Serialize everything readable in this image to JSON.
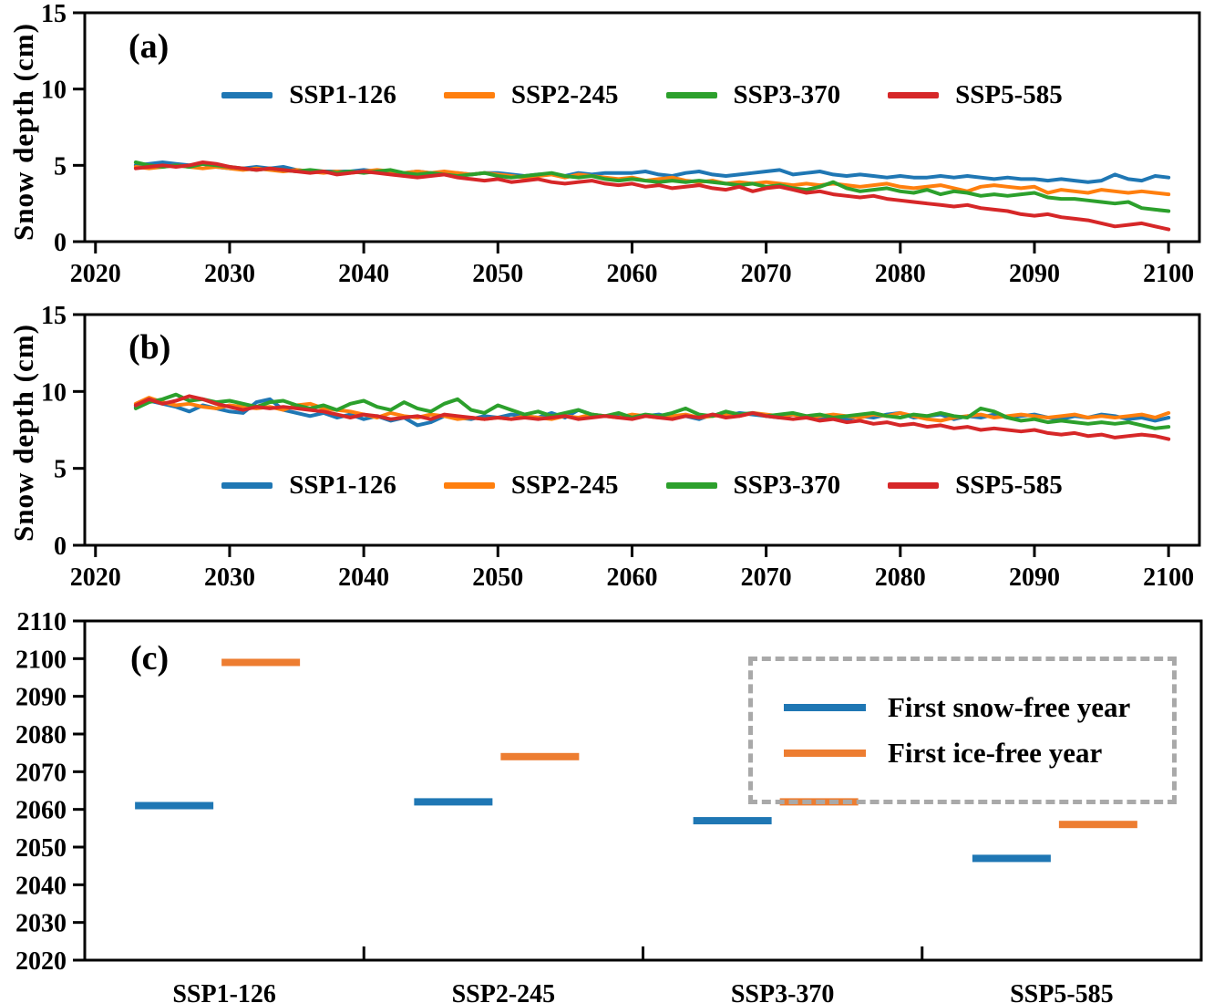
{
  "figure": {
    "panel_a_label": "(a)",
    "panel_b_label": "(b)",
    "panel_c_label": "(c)",
    "y_axis_label_a": "Snow depth (cm)",
    "y_axis_label_b": "Snow depth (cm)"
  },
  "colors": {
    "ssp1": "#1f77b4",
    "ssp2": "#ff7f0e",
    "ssp3": "#2ca02c",
    "ssp5": "#d62728",
    "snow_free": "#1f77b4",
    "ice_free": "#ed7d31",
    "legend_box_border": "#a9a9a9",
    "axis": "#000000"
  },
  "chart_data": [
    {
      "id": "a",
      "type": "line",
      "panel_label": "(a)",
      "ylabel": "Snow depth (cm)",
      "xlim": [
        2019.2,
        2102.3
      ],
      "ylim": [
        0,
        15
      ],
      "x_ticks": [
        2020,
        2030,
        2040,
        2050,
        2060,
        2070,
        2080,
        2090,
        2100
      ],
      "y_ticks": [
        0,
        5,
        10,
        15
      ],
      "x_start_year": 2023,
      "grid": false,
      "legend_position": "upper-center",
      "series": [
        {
          "name": "SSP1-126",
          "color_key": "ssp1",
          "values": [
            5.0,
            5.1,
            5.2,
            5.1,
            5.0,
            5.1,
            4.9,
            4.8,
            4.8,
            4.9,
            4.8,
            4.9,
            4.7,
            4.6,
            4.6,
            4.6,
            4.6,
            4.7,
            4.6,
            4.6,
            4.5,
            4.6,
            4.5,
            4.4,
            4.5,
            4.4,
            4.5,
            4.5,
            4.4,
            4.3,
            4.4,
            4.4,
            4.3,
            4.5,
            4.4,
            4.5,
            4.5,
            4.5,
            4.6,
            4.4,
            4.3,
            4.5,
            4.6,
            4.4,
            4.3,
            4.4,
            4.5,
            4.6,
            4.7,
            4.4,
            4.5,
            4.6,
            4.4,
            4.3,
            4.4,
            4.3,
            4.2,
            4.3,
            4.2,
            4.2,
            4.3,
            4.2,
            4.3,
            4.2,
            4.1,
            4.2,
            4.1,
            4.1,
            4.0,
            4.1,
            4.0,
            3.9,
            4.0,
            4.4,
            4.1,
            4.0,
            4.3,
            4.2
          ]
        },
        {
          "name": "SSP2-245",
          "color_key": "ssp2",
          "values": [
            4.9,
            4.8,
            4.9,
            5.0,
            4.9,
            4.8,
            4.9,
            4.8,
            4.7,
            4.8,
            4.7,
            4.6,
            4.7,
            4.6,
            4.5,
            4.6,
            4.5,
            4.6,
            4.7,
            4.6,
            4.5,
            4.6,
            4.5,
            4.6,
            4.5,
            4.4,
            4.5,
            4.4,
            4.3,
            4.2,
            4.3,
            4.4,
            4.2,
            4.4,
            4.3,
            4.2,
            4.1,
            4.2,
            4.0,
            4.1,
            4.2,
            4.0,
            3.9,
            4.0,
            3.8,
            3.9,
            3.8,
            3.9,
            3.8,
            3.7,
            3.8,
            3.7,
            3.8,
            3.7,
            3.6,
            3.7,
            3.8,
            3.6,
            3.5,
            3.6,
            3.7,
            3.5,
            3.3,
            3.6,
            3.7,
            3.6,
            3.5,
            3.6,
            3.2,
            3.4,
            3.3,
            3.2,
            3.4,
            3.3,
            3.2,
            3.3,
            3.2,
            3.1
          ]
        },
        {
          "name": "SSP3-370",
          "color_key": "ssp3",
          "values": [
            5.2,
            5.0,
            4.9,
            5.0,
            4.9,
            5.1,
            5.0,
            4.9,
            4.8,
            4.7,
            4.8,
            4.7,
            4.6,
            4.7,
            4.6,
            4.5,
            4.6,
            4.5,
            4.6,
            4.7,
            4.5,
            4.4,
            4.5,
            4.4,
            4.3,
            4.4,
            4.5,
            4.3,
            4.2,
            4.3,
            4.4,
            4.5,
            4.3,
            4.2,
            4.3,
            4.1,
            4.0,
            4.1,
            4.0,
            3.9,
            4.0,
            3.9,
            4.0,
            3.9,
            3.8,
            3.7,
            3.8,
            3.6,
            3.7,
            3.5,
            3.4,
            3.6,
            3.9,
            3.5,
            3.3,
            3.4,
            3.5,
            3.3,
            3.2,
            3.4,
            3.1,
            3.3,
            3.2,
            3.0,
            3.1,
            3.0,
            3.1,
            3.2,
            2.9,
            2.8,
            2.8,
            2.7,
            2.6,
            2.5,
            2.6,
            2.2,
            2.1,
            2.0
          ]
        },
        {
          "name": "SSP5-585",
          "color_key": "ssp5",
          "values": [
            4.8,
            4.9,
            5.0,
            4.9,
            5.0,
            5.2,
            5.1,
            4.9,
            4.8,
            4.7,
            4.8,
            4.7,
            4.6,
            4.5,
            4.6,
            4.4,
            4.5,
            4.6,
            4.5,
            4.4,
            4.3,
            4.2,
            4.3,
            4.4,
            4.2,
            4.1,
            4.0,
            4.1,
            3.9,
            4.0,
            4.1,
            3.9,
            3.8,
            3.9,
            4.0,
            3.8,
            3.7,
            3.8,
            3.6,
            3.7,
            3.5,
            3.6,
            3.7,
            3.5,
            3.4,
            3.6,
            3.3,
            3.5,
            3.6,
            3.4,
            3.2,
            3.3,
            3.1,
            3.0,
            2.9,
            3.0,
            2.8,
            2.7,
            2.6,
            2.5,
            2.4,
            2.3,
            2.4,
            2.2,
            2.1,
            2.0,
            1.8,
            1.7,
            1.8,
            1.6,
            1.5,
            1.4,
            1.2,
            1.0,
            1.1,
            1.2,
            1.0,
            0.8
          ]
        }
      ]
    },
    {
      "id": "b",
      "type": "line",
      "panel_label": "(b)",
      "ylabel": "Snow depth (cm)",
      "xlim": [
        2019.2,
        2102.3
      ],
      "ylim": [
        0,
        15
      ],
      "x_ticks": [
        2020,
        2030,
        2040,
        2050,
        2060,
        2070,
        2080,
        2090,
        2100
      ],
      "y_ticks": [
        0,
        5,
        10,
        15
      ],
      "x_start_year": 2023,
      "grid": false,
      "legend_position": "center",
      "series": [
        {
          "name": "SSP1-126",
          "color_key": "ssp1",
          "values": [
            9.0,
            9.4,
            9.2,
            9.0,
            8.7,
            9.1,
            8.9,
            8.7,
            8.6,
            9.3,
            9.5,
            8.8,
            8.6,
            8.4,
            8.6,
            8.3,
            8.5,
            8.2,
            8.4,
            8.1,
            8.3,
            7.8,
            8.0,
            8.4,
            8.3,
            8.2,
            8.4,
            8.3,
            8.5,
            8.4,
            8.3,
            8.6,
            8.3,
            8.8,
            8.5,
            8.4,
            8.5,
            8.3,
            8.4,
            8.5,
            8.3,
            8.4,
            8.2,
            8.5,
            8.4,
            8.6,
            8.5,
            8.4,
            8.3,
            8.5,
            8.4,
            8.3,
            8.4,
            8.2,
            8.4,
            8.3,
            8.5,
            8.6,
            8.3,
            8.4,
            8.5,
            8.2,
            8.4,
            8.3,
            8.5,
            8.3,
            8.4,
            8.5,
            8.3,
            8.2,
            8.4,
            8.3,
            8.5,
            8.4,
            8.2,
            8.3,
            8.1,
            8.3
          ]
        },
        {
          "name": "SSP2-245",
          "color_key": "ssp2",
          "values": [
            9.2,
            9.6,
            9.3,
            9.1,
            9.2,
            9.0,
            8.9,
            9.1,
            9.0,
            8.9,
            9.0,
            8.8,
            9.1,
            9.2,
            8.9,
            8.8,
            8.7,
            8.5,
            8.3,
            8.6,
            8.4,
            8.3,
            8.5,
            8.4,
            8.2,
            8.3,
            8.2,
            8.3,
            8.2,
            8.4,
            8.3,
            8.2,
            8.4,
            8.3,
            8.5,
            8.4,
            8.3,
            8.5,
            8.4,
            8.3,
            8.4,
            8.5,
            8.3,
            8.4,
            8.5,
            8.4,
            8.6,
            8.5,
            8.4,
            8.5,
            8.3,
            8.4,
            8.5,
            8.4,
            8.3,
            8.5,
            8.4,
            8.6,
            8.4,
            8.2,
            8.1,
            8.3,
            8.4,
            8.5,
            8.3,
            8.4,
            8.5,
            8.4,
            8.3,
            8.4,
            8.5,
            8.3,
            8.4,
            8.3,
            8.4,
            8.5,
            8.3,
            8.6
          ]
        },
        {
          "name": "SSP3-370",
          "color_key": "ssp3",
          "values": [
            8.9,
            9.3,
            9.5,
            9.8,
            9.4,
            9.5,
            9.3,
            9.4,
            9.2,
            9.0,
            9.3,
            9.4,
            9.1,
            8.9,
            9.1,
            8.8,
            9.2,
            9.4,
            9.0,
            8.8,
            9.3,
            8.9,
            8.7,
            9.2,
            9.5,
            8.8,
            8.6,
            9.1,
            8.8,
            8.5,
            8.7,
            8.4,
            8.6,
            8.8,
            8.5,
            8.4,
            8.6,
            8.3,
            8.5,
            8.4,
            8.6,
            8.9,
            8.5,
            8.4,
            8.7,
            8.5,
            8.6,
            8.4,
            8.5,
            8.6,
            8.4,
            8.5,
            8.3,
            8.4,
            8.5,
            8.6,
            8.4,
            8.3,
            8.5,
            8.4,
            8.6,
            8.4,
            8.3,
            8.9,
            8.7,
            8.3,
            8.1,
            8.2,
            8.0,
            8.1,
            8.0,
            7.9,
            8.0,
            7.9,
            8.0,
            7.8,
            7.6,
            7.7
          ]
        },
        {
          "name": "SSP5-585",
          "color_key": "ssp5",
          "values": [
            9.1,
            9.5,
            9.2,
            9.4,
            9.7,
            9.5,
            9.2,
            9.0,
            8.8,
            9.0,
            8.9,
            9.0,
            8.9,
            8.8,
            8.7,
            8.5,
            8.3,
            8.5,
            8.4,
            8.2,
            8.3,
            8.4,
            8.2,
            8.5,
            8.4,
            8.3,
            8.2,
            8.3,
            8.2,
            8.3,
            8.2,
            8.3,
            8.4,
            8.2,
            8.3,
            8.4,
            8.3,
            8.2,
            8.4,
            8.3,
            8.2,
            8.4,
            8.3,
            8.5,
            8.3,
            8.4,
            8.6,
            8.4,
            8.3,
            8.2,
            8.3,
            8.1,
            8.2,
            8.0,
            8.1,
            7.9,
            8.0,
            7.8,
            7.9,
            7.7,
            7.8,
            7.6,
            7.7,
            7.5,
            7.6,
            7.5,
            7.4,
            7.5,
            7.3,
            7.2,
            7.3,
            7.1,
            7.2,
            7.0,
            7.1,
            7.2,
            7.1,
            6.9
          ]
        }
      ]
    },
    {
      "id": "c",
      "type": "scatter",
      "panel_label": "(c)",
      "categories": [
        "SSP1-126",
        "SSP2-245",
        "SSP3-370",
        "SSP5-585"
      ],
      "ylim": [
        2020,
        2110
      ],
      "y_ticks": [
        2020,
        2030,
        2040,
        2050,
        2060,
        2070,
        2080,
        2090,
        2100,
        2110
      ],
      "grid": false,
      "legend_position": "upper-right-dashed-box",
      "series": [
        {
          "name": "First snow-free year",
          "color_key": "snow_free",
          "values": [
            2061,
            2062,
            2057,
            2047
          ]
        },
        {
          "name": "First ice-free year",
          "color_key": "ice_free",
          "values": [
            2099,
            2074,
            2062,
            2056
          ]
        }
      ]
    }
  ]
}
